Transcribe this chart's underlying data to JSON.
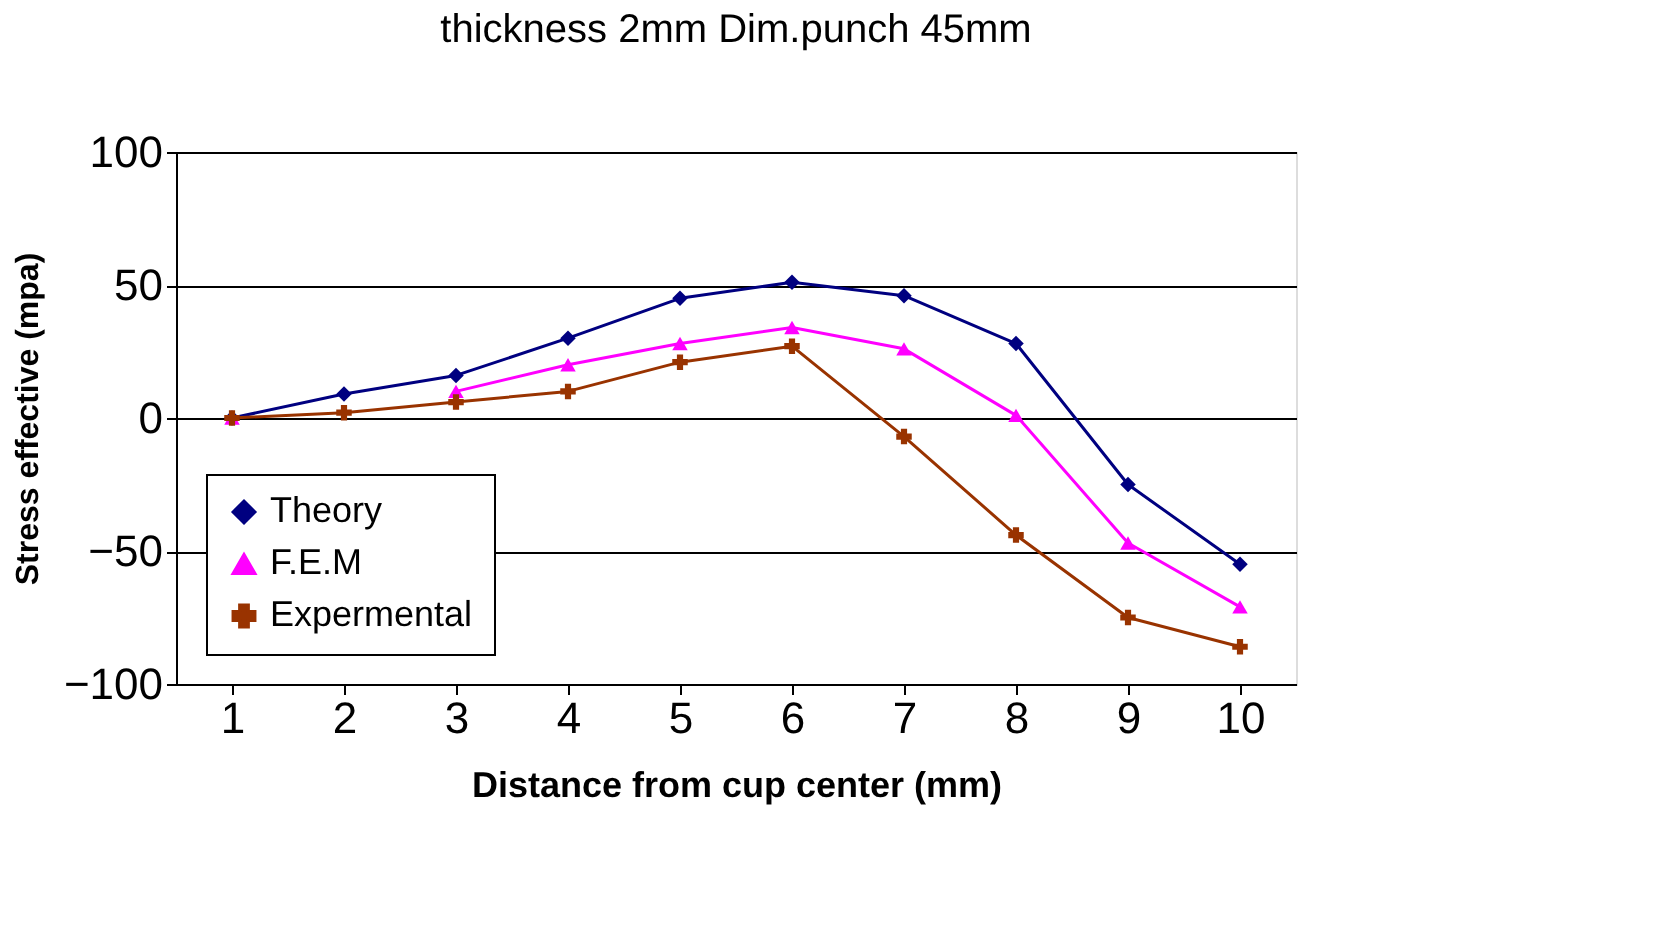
{
  "chart_data": {
    "type": "line",
    "title": "thickness 2mm       Dim.punch 45mm",
    "xlabel": "Distance from cup center (mm)",
    "ylabel": "Stress effective (mpa)",
    "categories": [
      "1",
      "2",
      "3",
      "4",
      "5",
      "6",
      "7",
      "8",
      "9",
      "10"
    ],
    "series": [
      {
        "name": "Theory",
        "color": "#000080",
        "marker": "diamond",
        "values": [
          0,
          9,
          16,
          30,
          45,
          51,
          46,
          28,
          -25,
          -55
        ]
      },
      {
        "name": "F.E.M",
        "color": "#ff00ff",
        "marker": "triangle",
        "values": [
          0,
          null,
          10,
          20,
          28,
          34,
          26,
          1,
          -47,
          -71
        ]
      },
      {
        "name": "Expermental",
        "color": "#993300",
        "marker": "cross",
        "values": [
          0,
          2,
          6,
          10,
          21,
          27,
          -7,
          -44,
          -75,
          -86
        ]
      }
    ],
    "ylim": [
      -100,
      100
    ],
    "yticks": [
      -100,
      -50,
      0,
      50,
      100
    ],
    "grid": "y",
    "legend": "bottom left"
  }
}
